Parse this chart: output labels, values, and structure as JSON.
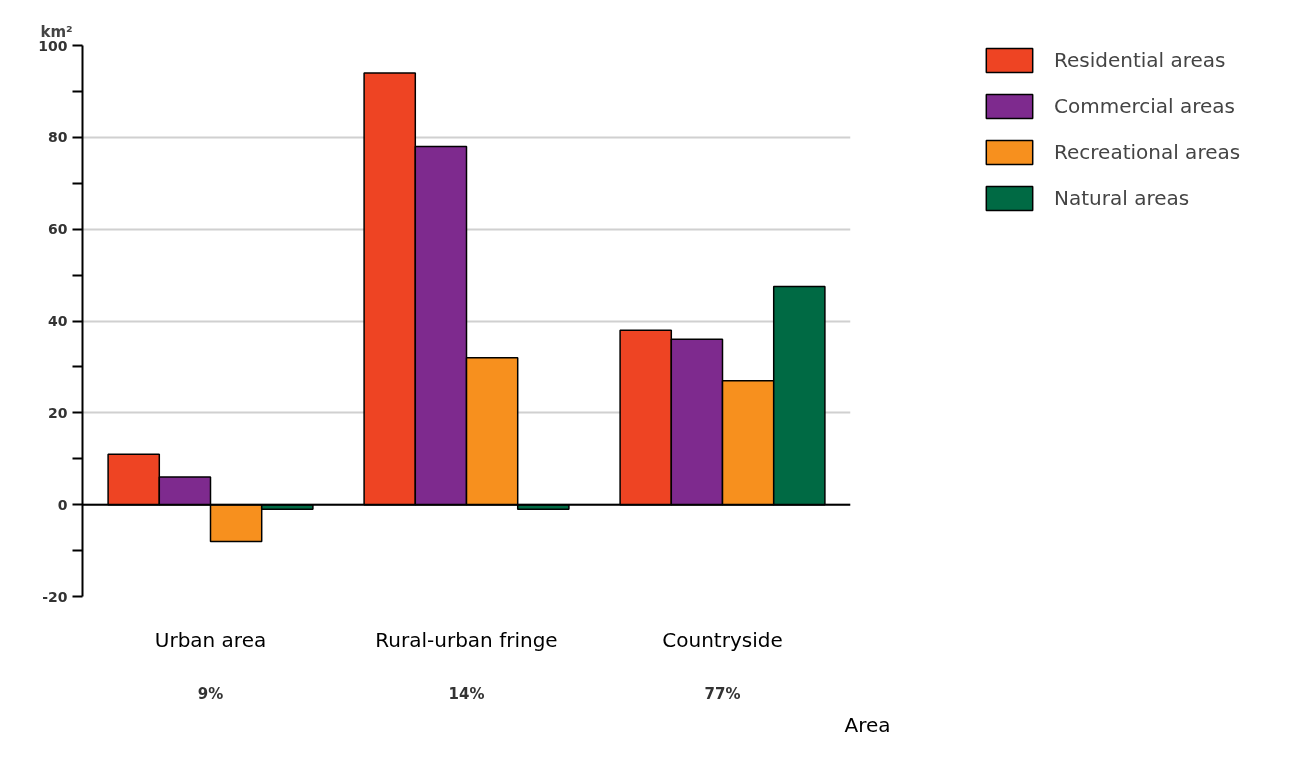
{
  "chart_data": {
    "type": "bar",
    "ylabel": "km²",
    "xlabel": "Area",
    "categories": [
      "Urban area",
      "Rural-urban fringe",
      "Countryside"
    ],
    "annotations": [
      "9%",
      "14%",
      "77%"
    ],
    "series": [
      {
        "name": "Residential areas",
        "color": "#ee4423",
        "values": [
          11,
          94,
          38
        ]
      },
      {
        "name": "Commercial areas",
        "color": "#7e2a8e",
        "values": [
          6,
          78,
          36
        ]
      },
      {
        "name": "Recreational areas",
        "color": "#f7901e",
        "values": [
          -8,
          32,
          27
        ]
      },
      {
        "name": "Natural areas",
        "color": "#006a44",
        "values": [
          -1,
          -1,
          47.5
        ]
      }
    ],
    "ylim": [
      -20,
      100
    ],
    "yticks": [
      -20,
      {
        "value": -10,
        "label": null
      },
      0,
      {
        "value": 10,
        "label": null
      },
      20,
      {
        "value": 30,
        "label": null
      },
      40,
      {
        "value": 50,
        "label": null
      },
      60,
      {
        "value": 70,
        "label": null
      },
      80,
      {
        "value": 90,
        "label": null
      },
      100
    ],
    "grid": "y",
    "legend": "top right"
  }
}
